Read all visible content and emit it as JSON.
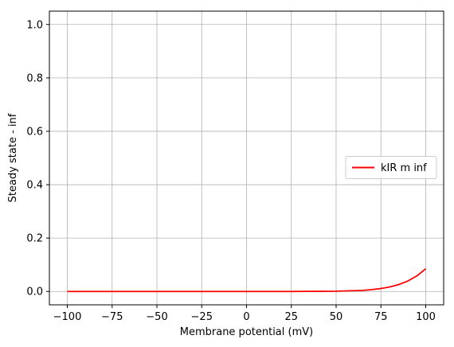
{
  "chart_data": {
    "type": "line",
    "title": "",
    "xlabel": "Membrane potential (mV)",
    "ylabel": "Steady state - inf",
    "xlim": [
      -110,
      110
    ],
    "ylim": [
      -0.05,
      1.05
    ],
    "xticks": [
      -100,
      -75,
      -50,
      -25,
      0,
      25,
      50,
      75,
      100
    ],
    "xtick_labels": [
      "−100",
      "−75",
      "−50",
      "−25",
      "0",
      "25",
      "50",
      "75",
      "100"
    ],
    "yticks": [
      0.0,
      0.2,
      0.4,
      0.6,
      0.8,
      1.0
    ],
    "ytick_labels": [
      "0.0",
      "0.2",
      "0.4",
      "0.6",
      "0.8",
      "1.0"
    ],
    "grid": true,
    "legend": {
      "position": "center-right"
    },
    "series": [
      {
        "name": "kIR m inf",
        "color": "#ff0000",
        "x": [
          -100,
          -75,
          -50,
          -25,
          0,
          25,
          40,
          50,
          60,
          65,
          70,
          75,
          80,
          85,
          90,
          95,
          100
        ],
        "y": [
          0.0,
          0.0,
          0.0,
          0.0,
          0.0,
          0.0,
          0.0005,
          0.001,
          0.003,
          0.004,
          0.007,
          0.011,
          0.017,
          0.026,
          0.039,
          0.058,
          0.085
        ]
      }
    ]
  }
}
